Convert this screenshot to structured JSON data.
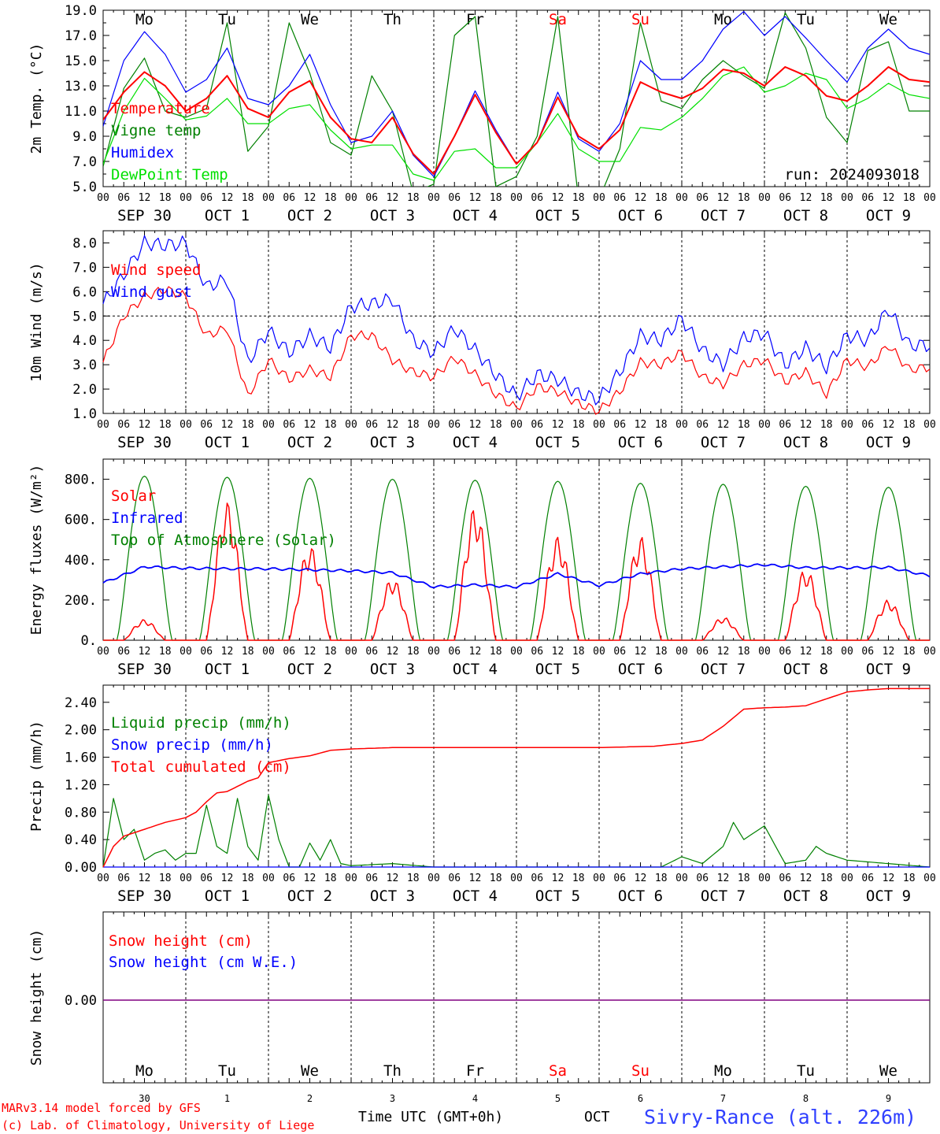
{
  "days": [
    {
      "dow": "Mo",
      "weekend": false,
      "date": "SEP 30",
      "num": "30"
    },
    {
      "dow": "Tu",
      "weekend": false,
      "date": "OCT  1",
      "num": "1"
    },
    {
      "dow": "We",
      "weekend": false,
      "date": "OCT  2",
      "num": "2"
    },
    {
      "dow": "Th",
      "weekend": false,
      "date": "OCT  3",
      "num": "3"
    },
    {
      "dow": "Fr",
      "weekend": false,
      "date": "OCT  4",
      "num": "4"
    },
    {
      "dow": "Sa",
      "weekend": true,
      "date": "OCT  5",
      "num": "5"
    },
    {
      "dow": "Su",
      "weekend": true,
      "date": "OCT  6",
      "num": "6"
    },
    {
      "dow": "Mo",
      "weekend": false,
      "date": "OCT  7",
      "num": "7"
    },
    {
      "dow": "Tu",
      "weekend": false,
      "date": "OCT  8",
      "num": "8"
    },
    {
      "dow": "We",
      "weekend": false,
      "date": "OCT  9",
      "num": "9"
    }
  ],
  "hour_labels": [
    "00",
    "06",
    "12",
    "18"
  ],
  "run_label": "run: 2024093018",
  "footer": {
    "model": "MARv3.14 model forced by GFS",
    "copyright": "(c) Lab. of Climatology, University of Liege",
    "axis_title": "Time UTC (GMT+0h)",
    "month": "OCT",
    "station": "Sivry-Rance (alt. 226m)"
  },
  "colors": {
    "red": "#ff0000",
    "green": "#008000",
    "blue": "#0000ff",
    "lightgreen": "#00e000",
    "purple": "#800080",
    "weekend": "#ff0000"
  },
  "chart_data": [
    {
      "type": "line",
      "ylabel": "2m Temp. (°C)",
      "ylim": [
        5,
        19
      ],
      "yticks": [
        "5.0",
        "7.0",
        "9.0",
        "11.0",
        "13.0",
        "15.0",
        "17.0",
        "19.0"
      ],
      "x_hours": [
        0,
        6,
        12,
        18,
        24,
        30,
        36,
        42,
        48,
        54,
        60,
        66,
        72,
        78,
        84,
        90,
        96,
        102,
        108,
        114,
        120,
        126,
        132,
        138,
        144,
        150,
        156,
        162,
        168,
        174,
        180,
        186,
        192,
        198,
        204,
        210,
        216,
        222,
        228,
        234,
        240
      ],
      "series": [
        {
          "name": "Temperature",
          "color": "red",
          "values": [
            10.3,
            12.5,
            14.1,
            13.0,
            11.0,
            12.0,
            13.8,
            11.2,
            10.5,
            12.5,
            13.4,
            10.5,
            8.8,
            8.5,
            10.5,
            7.6,
            6.0,
            9.0,
            12.3,
            9.3,
            6.8,
            8.5,
            12.1,
            9.0,
            8.0,
            9.5,
            13.3,
            12.5,
            12.0,
            12.8,
            14.3,
            14.0,
            13.0,
            14.5,
            13.8,
            12.2,
            11.8,
            13.0,
            14.5,
            13.5,
            13.3
          ]
        },
        {
          "name": "Vigne temp",
          "color": "green",
          "values": [
            6.6,
            12.8,
            15.2,
            11.0,
            10.5,
            11.2,
            18.0,
            7.8,
            9.8,
            18.0,
            14.0,
            8.5,
            7.5,
            13.8,
            11.0,
            4.5,
            5.2,
            17.0,
            18.5,
            5.0,
            5.8,
            9.0,
            18.5,
            4.0,
            4.0,
            8.0,
            18.0,
            11.8,
            11.2,
            13.5,
            15.0,
            13.8,
            12.8,
            18.8,
            16.0,
            10.5,
            8.5,
            15.8,
            16.5,
            11.0,
            11.0
          ]
        },
        {
          "name": "Humidex",
          "color": "blue",
          "values": [
            9.8,
            15.0,
            17.3,
            15.5,
            12.5,
            13.5,
            16.0,
            12.0,
            11.5,
            13.0,
            15.5,
            11.5,
            8.5,
            9.0,
            11.0,
            7.5,
            5.8,
            9.0,
            12.6,
            9.5,
            6.8,
            8.5,
            12.5,
            8.8,
            7.8,
            10.0,
            15.0,
            13.5,
            13.5,
            15.0,
            17.5,
            18.9,
            17.0,
            18.5,
            16.8,
            15.0,
            13.3,
            16.0,
            17.5,
            16.0,
            15.5
          ]
        },
        {
          "name": "DewPoint Temp",
          "color": "lightgreen",
          "values": [
            6.8,
            11.0,
            13.6,
            12.0,
            10.3,
            10.6,
            12.0,
            10.0,
            10.0,
            11.2,
            11.5,
            9.5,
            8.0,
            8.3,
            8.3,
            6.0,
            5.5,
            7.8,
            8.0,
            6.5,
            6.5,
            8.5,
            10.8,
            8.0,
            7.0,
            7.0,
            9.7,
            9.5,
            10.5,
            12.0,
            13.8,
            14.5,
            12.5,
            13.0,
            14.0,
            13.5,
            11.2,
            12.0,
            13.2,
            12.3,
            12.0
          ]
        }
      ]
    },
    {
      "type": "line",
      "ylabel": "10m Wind (m/s)",
      "ylim": [
        1,
        8.5
      ],
      "yticks": [
        "1.0",
        "2.0",
        "3.0",
        "4.0",
        "5.0",
        "6.0",
        "7.0",
        "8.0"
      ],
      "reference_line": 5.0,
      "x_hours": [
        0,
        6,
        12,
        18,
        24,
        30,
        36,
        42,
        48,
        54,
        60,
        66,
        72,
        78,
        84,
        90,
        96,
        102,
        108,
        114,
        120,
        126,
        132,
        138,
        144,
        150,
        156,
        162,
        168,
        174,
        180,
        186,
        192,
        198,
        204,
        210,
        216,
        222,
        228,
        234,
        240
      ],
      "series": [
        {
          "name": "Wind speed",
          "color": "red",
          "values": [
            3.1,
            5.0,
            5.8,
            6.1,
            5.8,
            4.2,
            4.5,
            1.7,
            3.2,
            2.4,
            2.8,
            2.5,
            4.2,
            4.2,
            3.2,
            2.7,
            2.5,
            3.3,
            2.6,
            1.8,
            1.2,
            2.1,
            1.9,
            1.4,
            1.1,
            1.9,
            3.1,
            3.0,
            3.5,
            2.5,
            2.2,
            3.0,
            3.2,
            2.3,
            2.7,
            1.8,
            3.2,
            2.9,
            3.8,
            2.8,
            2.9
          ]
        },
        {
          "name": "Wind gust",
          "color": "blue",
          "values": [
            5.5,
            6.7,
            8.0,
            7.9,
            8.0,
            6.2,
            6.5,
            3.1,
            4.4,
            3.5,
            4.2,
            3.7,
            5.4,
            5.5,
            5.7,
            4.0,
            3.5,
            4.5,
            3.6,
            2.6,
            1.7,
            2.6,
            2.4,
            1.8,
            1.6,
            2.7,
            4.2,
            4.0,
            4.9,
            3.6,
            3.0,
            4.1,
            4.3,
            3.0,
            3.7,
            2.9,
            4.2,
            4.0,
            5.3,
            3.8,
            3.8
          ]
        }
      ]
    },
    {
      "type": "line",
      "ylabel": "Energy fluxes (W/m²)",
      "ylim": [
        0,
        900
      ],
      "yticks": [
        "0.",
        "200.",
        "400.",
        "600.",
        "800."
      ],
      "series": [
        {
          "name": "Solar",
          "color": "red",
          "peak_hours": [
            12,
            36,
            60,
            84,
            108,
            132,
            156,
            180,
            204,
            228
          ],
          "peaks": [
            90,
            600,
            410,
            270,
            580,
            450,
            450,
            100,
            310,
            175
          ]
        },
        {
          "name": "Infrared",
          "color": "blue",
          "x_hours": [
            0,
            12,
            24,
            36,
            48,
            60,
            72,
            84,
            96,
            108,
            120,
            132,
            144,
            156,
            168,
            180,
            192,
            204,
            216,
            228,
            240
          ],
          "values": [
            285,
            365,
            358,
            355,
            355,
            350,
            345,
            335,
            265,
            275,
            265,
            330,
            272,
            330,
            355,
            365,
            375,
            360,
            360,
            362,
            320
          ]
        },
        {
          "name": "Top of Atmosphere (Solar)",
          "color": "green",
          "peak_hours": [
            12,
            36,
            60,
            84,
            108,
            132,
            156,
            180,
            204,
            228
          ],
          "peaks": [
            815,
            810,
            805,
            800,
            795,
            790,
            780,
            775,
            765,
            760
          ]
        }
      ]
    },
    {
      "type": "line",
      "ylabel": "Precip (mm/h)",
      "ylim": [
        0,
        2.65
      ],
      "yticks": [
        "0.00",
        "0.40",
        "0.80",
        "1.20",
        "1.60",
        "2.00",
        "2.40"
      ],
      "x_hours": [
        0,
        3,
        6,
        9,
        12,
        15,
        18,
        21,
        24,
        27,
        30,
        33,
        36,
        39,
        42,
        45,
        48,
        51,
        54,
        57,
        60,
        63,
        66,
        69,
        72,
        84,
        96,
        108,
        120,
        132,
        144,
        162,
        168,
        174,
        180,
        183,
        186,
        189,
        192,
        198,
        204,
        207,
        210,
        216,
        228,
        240
      ],
      "series": [
        {
          "name": "Liquid precip (mm/h)",
          "color": "green",
          "values": [
            0,
            1.0,
            0.4,
            0.55,
            0.1,
            0.2,
            0.25,
            0.1,
            0.2,
            0.2,
            0.9,
            0.3,
            0.2,
            1.0,
            0.3,
            0.1,
            1.05,
            0.4,
            0,
            0,
            0.35,
            0.1,
            0.4,
            0.05,
            0.02,
            0.05,
            0,
            0,
            0,
            0,
            0,
            0,
            0.15,
            0.05,
            0.3,
            0.65,
            0.4,
            0.5,
            0.6,
            0.05,
            0.1,
            0.3,
            0.2,
            0.1,
            0.05,
            0
          ]
        },
        {
          "name": "Snow precip (mm/h)",
          "color": "blue",
          "values": [
            0
          ]
        },
        {
          "name": "Total cumulated (cm)",
          "color": "red",
          "x_hours": [
            0,
            3,
            6,
            12,
            18,
            24,
            27,
            30,
            33,
            36,
            42,
            45,
            48,
            54,
            60,
            66,
            72,
            84,
            96,
            108,
            120,
            132,
            144,
            160,
            168,
            174,
            180,
            186,
            192,
            198,
            204,
            210,
            216,
            222,
            228,
            240
          ],
          "values": [
            0,
            0.3,
            0.45,
            0.55,
            0.65,
            0.72,
            0.8,
            0.95,
            1.08,
            1.1,
            1.25,
            1.3,
            1.52,
            1.58,
            1.62,
            1.7,
            1.72,
            1.74,
            1.74,
            1.74,
            1.74,
            1.74,
            1.74,
            1.76,
            1.8,
            1.85,
            2.05,
            2.3,
            2.32,
            2.33,
            2.35,
            2.45,
            2.55,
            2.58,
            2.6,
            2.6
          ]
        }
      ]
    },
    {
      "type": "line",
      "ylabel": "Snow height (cm)",
      "yticks": [
        "0.00"
      ],
      "series": [
        {
          "name": "Snow height (cm)",
          "color": "red",
          "value": 0
        },
        {
          "name": "Snow height (cm W.E.)",
          "color": "blue",
          "value": 0
        }
      ]
    }
  ]
}
